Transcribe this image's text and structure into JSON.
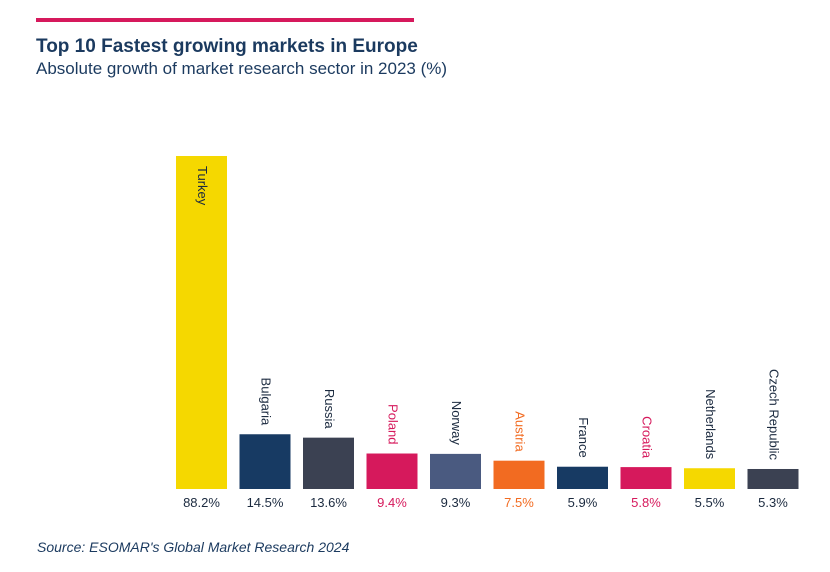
{
  "header": {
    "title": "Top 10 Fastest growing markets in Europe",
    "subtitle": "Absolute growth of market research sector in 2023 (%)"
  },
  "footer": {
    "source": "Source: ESOMAR's Global Market Research 2024"
  },
  "chart_data": {
    "type": "bar",
    "title": "Top 10 Fastest growing markets in Europe",
    "subtitle": "Absolute growth of market research sector in 2023 (%)",
    "xlabel": "",
    "ylabel": "",
    "categories": [
      "Turkey",
      "Bulgaria",
      "Russia",
      "Poland",
      "Norway",
      "Austria",
      "France",
      "Croatia",
      "Netherlands",
      "Czech Republic"
    ],
    "values": [
      88.2,
      14.5,
      13.6,
      9.4,
      9.3,
      7.5,
      5.9,
      5.8,
      5.5,
      5.3
    ],
    "value_labels": [
      "88.2%",
      "14.5%",
      "13.6%",
      "9.4%",
      "9.3%",
      "7.5%",
      "5.9%",
      "5.8%",
      "5.5%",
      "5.3%"
    ],
    "bar_colors": [
      "#f5d800",
      "#173a63",
      "#3b4152",
      "#d6195c",
      "#4a5a80",
      "#f26b21",
      "#173a63",
      "#d6195c",
      "#f5d800",
      "#3b4152"
    ],
    "label_colors": [
      "#1b2a3f",
      "#1b2a3f",
      "#1b2a3f",
      "#d6195c",
      "#1b2a3f",
      "#f26b21",
      "#1b2a3f",
      "#d6195c",
      "#1b2a3f",
      "#1b2a3f"
    ],
    "ylim": [
      0,
      88.2
    ],
    "grid": false,
    "legend": "none"
  }
}
